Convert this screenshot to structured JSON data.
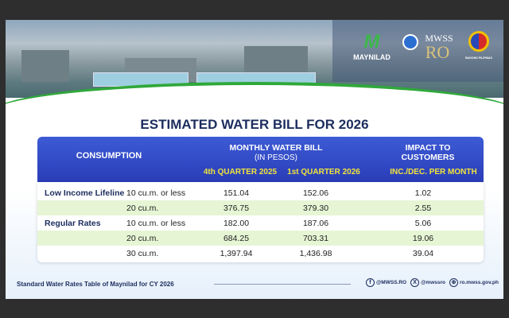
{
  "logos": {
    "maynilad": "MAYNILAD",
    "mwss": "MWSS",
    "ro": "RO",
    "bagong": "BAGONG PILIPINAS"
  },
  "title": "ESTIMATED WATER BILL FOR 2026",
  "header": {
    "consumption": "CONSUMPTION",
    "monthly": "MONTHLY WATER BILL",
    "in_pesos": "(IN PESOS)",
    "q4": "4th QUARTER 2025",
    "q1": "1st QUARTER 2026",
    "impact": "IMPACT TO CUSTOMERS",
    "incdec": "INC./DEC. PER MONTH"
  },
  "rows": [
    {
      "category": "Low Income Lifeline",
      "range": "10 cu.m. or less",
      "q4": "151.04",
      "q1": "152.06",
      "impact": "1.02"
    },
    {
      "category": "",
      "range": "20 cu.m.",
      "q4": "376.75",
      "q1": "379.30",
      "impact": "2.55"
    },
    {
      "category": "Regular Rates",
      "range": "10 cu.m. or less",
      "q4": "182.00",
      "q1": "187.06",
      "impact": "5.06"
    },
    {
      "category": "",
      "range": "20 cu.m.",
      "q4": "684.25",
      "q1": "703.31",
      "impact": "19.06"
    },
    {
      "category": "",
      "range": "30 cu.m.",
      "q4": "1,397.94",
      "q1": "1,436.98",
      "impact": "39.04"
    }
  ],
  "footer": {
    "caption": "Standard Water Rates Table of Maynilad for CY 2026",
    "facebook": "@MWSS.RO",
    "x": "@mwssro",
    "web": "ro.mwss.gov.ph"
  }
}
